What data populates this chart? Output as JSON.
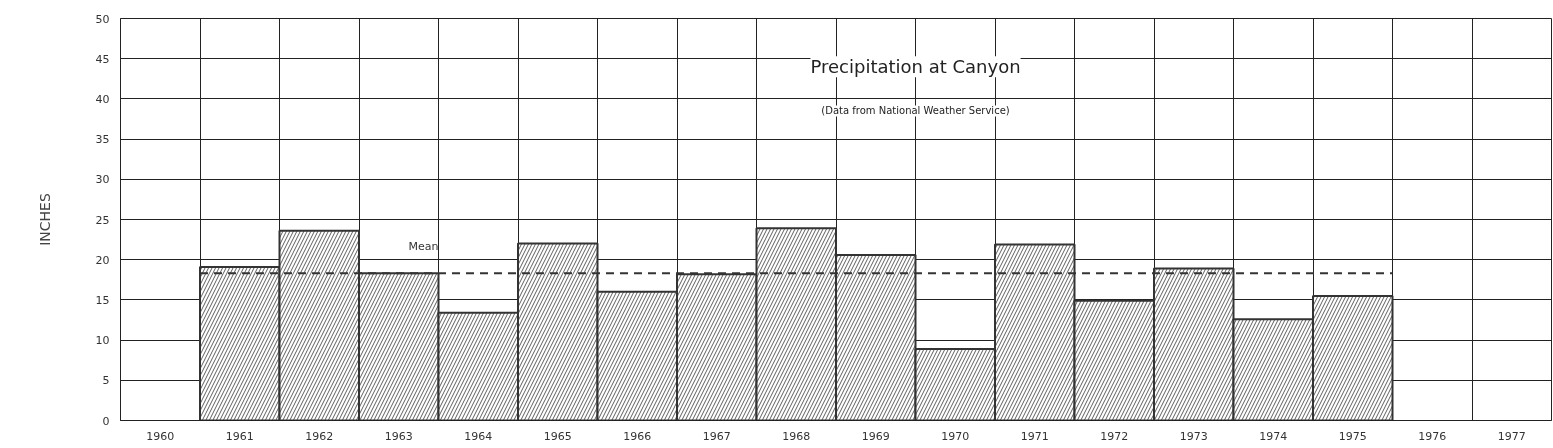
{
  "chart_data": {
    "type": "bar",
    "title": "Precipitation at Canyon",
    "subtitle": "(Data from National Weather Service)",
    "ylabel": "INCHES",
    "categories": [
      "1960",
      "1961",
      "1962",
      "1963",
      "1964",
      "1965",
      "1966",
      "1967",
      "1968",
      "1969",
      "1970",
      "1971",
      "1972",
      "1973",
      "1974",
      "1975",
      "1976",
      "1977"
    ],
    "series": [
      {
        "color": "#333333",
        "values": [
          null,
          19.1,
          23.6,
          18.3,
          13.4,
          22.0,
          16.0,
          18.2,
          23.9,
          20.6,
          8.9,
          21.9,
          14.9,
          18.9,
          12.6,
          15.5,
          null,
          null
        ]
      }
    ],
    "ylim": [
      0,
      50
    ],
    "yticks": [
      0,
      5,
      10,
      15,
      20,
      25,
      30,
      35,
      40,
      45,
      50
    ],
    "grid": true,
    "ref_lines": [
      {
        "axis": "y",
        "value": 18.3,
        "label": "Mean",
        "line_style": "dashed",
        "color": "#333333"
      }
    ]
  }
}
